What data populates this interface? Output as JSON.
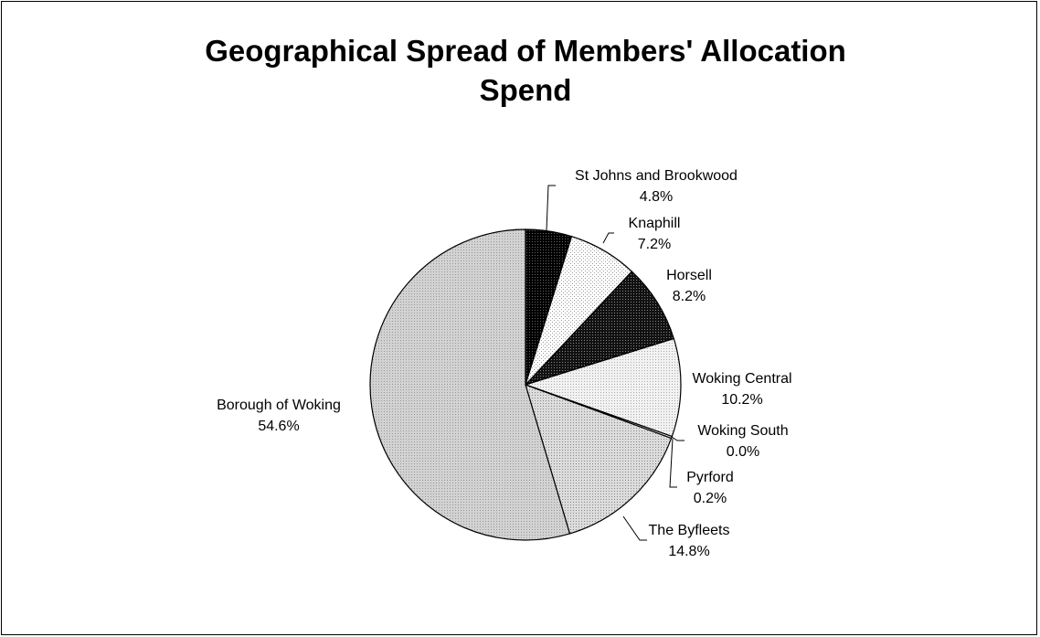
{
  "chart_data": {
    "type": "pie",
    "title": "Geographical Spread of Members' Allocation Spend",
    "title_lines": [
      "Geographical Spread of Members' Allocation",
      "Spend"
    ],
    "slices": [
      {
        "label": "St Johns and Brookwood",
        "value_label": "4.8%",
        "value": 4.8,
        "fill": "#000000"
      },
      {
        "label": "Knaphill",
        "value_label": "7.2%",
        "value": 7.2,
        "fill": "#ffffff",
        "pattern": "dotted"
      },
      {
        "label": "Horsell",
        "value_label": "8.2%",
        "value": 8.2,
        "fill": "#1a1a1a"
      },
      {
        "label": "Woking Central",
        "value_label": "10.2%",
        "value": 10.2,
        "fill": "#eeeeee"
      },
      {
        "label": "Woking South",
        "value_label": "0.0%",
        "value": 0.0,
        "fill": "#666666"
      },
      {
        "label": "Pyrford",
        "value_label": "0.2%",
        "value": 0.2,
        "fill": "#ffffff"
      },
      {
        "label": "The Byfleets",
        "value_label": "14.8%",
        "value": 14.8,
        "fill": "#d4d4d4"
      },
      {
        "label": "Borough of Woking",
        "value_label": "54.6%",
        "value": 54.6,
        "fill": "#c8c8c8"
      }
    ],
    "start": "12 o'clock",
    "direction": "clockwise",
    "legend": "none"
  }
}
